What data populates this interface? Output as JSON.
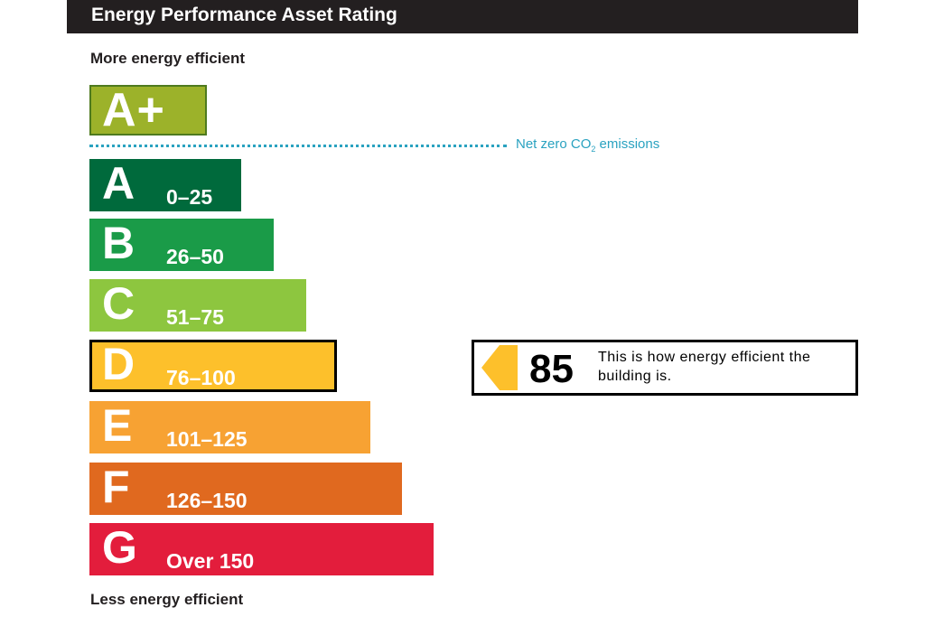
{
  "header": {
    "title": "Energy Performance Asset Rating"
  },
  "labels": {
    "more_efficient": "More energy efficient",
    "less_efficient": "Less energy efficient"
  },
  "net_zero": {
    "text_pre": "Net zero CO",
    "subscript": "2",
    "text_post": " emissions",
    "color": "#2aa2c0"
  },
  "indicator": {
    "score": "85",
    "text": "This is how energy efficient the building is.",
    "arrow_color": "#fdc02b"
  },
  "chart_data": {
    "type": "bar",
    "title": "Energy Performance Asset Rating",
    "orientation": "horizontal",
    "current_rating": {
      "band": "D",
      "score": 85
    },
    "bands": [
      {
        "letter": "A+",
        "range": "",
        "color": "#9cb22a"
      },
      {
        "letter": "A",
        "range": "0–25",
        "color": "#006a3c"
      },
      {
        "letter": "B",
        "range": "26–50",
        "color": "#1a9b48"
      },
      {
        "letter": "C",
        "range": "51–75",
        "color": "#8dc63f"
      },
      {
        "letter": "D",
        "range": "76–100",
        "color": "#fdc02b"
      },
      {
        "letter": "E",
        "range": "101–125",
        "color": "#f7a233"
      },
      {
        "letter": "F",
        "range": "126–150",
        "color": "#e0691f"
      },
      {
        "letter": "G",
        "range": "Over 150",
        "color": "#e31d3c"
      }
    ]
  }
}
